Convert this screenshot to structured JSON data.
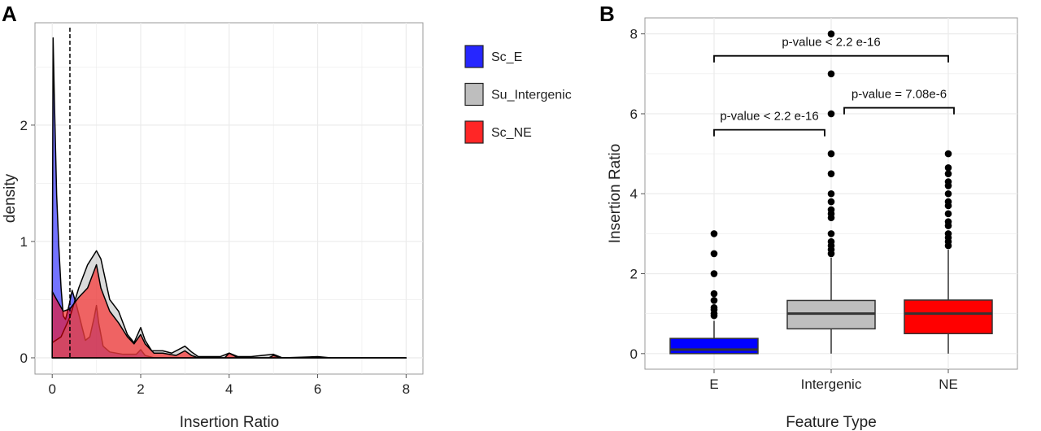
{
  "chart_data": [
    {
      "panel": "A",
      "type": "area",
      "xlabel": "Insertion Ratio",
      "ylabel": "density",
      "xlim": [
        -0.39,
        8.38
      ],
      "ylim": [
        -0.14,
        2.88
      ],
      "xticks": [
        0,
        2,
        4,
        6,
        8
      ],
      "yticks": [
        0,
        1,
        2
      ],
      "grid": true,
      "legend_position": "right",
      "vline_x": 0.4,
      "series": [
        {
          "name": "Sc_E",
          "color": "#0000ff",
          "x": [
            0,
            0.02,
            0.05,
            0.1,
            0.15,
            0.2,
            0.25,
            0.3,
            0.38,
            0.45,
            0.55,
            0.65,
            0.75,
            0.85,
            0.95,
            1.0,
            1.05,
            1.15,
            1.3,
            1.6,
            1.9,
            2.0,
            2.1,
            2.3,
            8
          ],
          "y": [
            0.4,
            2.75,
            2.2,
            1.4,
            0.95,
            0.6,
            0.36,
            0.33,
            0.45,
            0.58,
            0.45,
            0.3,
            0.15,
            0.18,
            0.35,
            0.45,
            0.3,
            0.1,
            0.05,
            0.03,
            0.03,
            0.07,
            0.02,
            0,
            0
          ]
        },
        {
          "name": "Su_Intergenic",
          "color": "#bebebe",
          "x": [
            0,
            0.2,
            0.4,
            0.6,
            0.8,
            1.0,
            1.1,
            1.3,
            1.5,
            1.7,
            1.85,
            2.0,
            2.1,
            2.25,
            2.5,
            2.7,
            2.9,
            3.0,
            3.15,
            3.3,
            3.8,
            4.0,
            4.2,
            4.5,
            5.0,
            5.2,
            6.0,
            6.3,
            8
          ],
          "y": [
            0.13,
            0.18,
            0.35,
            0.6,
            0.8,
            0.92,
            0.85,
            0.5,
            0.4,
            0.2,
            0.13,
            0.26,
            0.15,
            0.06,
            0.06,
            0.04,
            0.08,
            0.1,
            0.05,
            0.01,
            0.01,
            0.04,
            0.01,
            0.01,
            0.03,
            0,
            0.01,
            0,
            0
          ]
        },
        {
          "name": "Sc_NE",
          "color": "#ff0000",
          "x": [
            0,
            0.1,
            0.25,
            0.4,
            0.6,
            0.8,
            1.0,
            1.1,
            1.3,
            1.5,
            1.7,
            1.85,
            2.0,
            2.1,
            2.3,
            2.5,
            2.8,
            3.0,
            3.15,
            3.3,
            3.9,
            4.0,
            4.2,
            4.9,
            5.0,
            5.2,
            8
          ],
          "y": [
            0.57,
            0.5,
            0.4,
            0.42,
            0.52,
            0.6,
            0.8,
            0.6,
            0.4,
            0.3,
            0.18,
            0.12,
            0.2,
            0.12,
            0.04,
            0.04,
            0.02,
            0.06,
            0.02,
            0,
            0,
            0.04,
            0,
            0,
            0.02,
            0,
            0
          ]
        }
      ]
    },
    {
      "panel": "B",
      "type": "box",
      "xlabel": "Feature Type",
      "ylabel": "Insertion Ratio",
      "ylim": [
        -0.39,
        8.4
      ],
      "yticks": [
        0,
        2,
        4,
        6,
        8
      ],
      "grid": true,
      "categories": [
        "E",
        "Intergenic",
        "NE"
      ],
      "boxes": [
        {
          "name": "E",
          "color": "#0000ff",
          "min": 0,
          "q1": 0,
          "median": 0.1,
          "q3": 0.38,
          "max": 0.82,
          "outliers": [
            0.95,
            1.0,
            1.1,
            1.15,
            1.33,
            1.5,
            2.0,
            2.5,
            3.0
          ]
        },
        {
          "name": "Intergenic",
          "color": "#bebebe",
          "min": 0,
          "q1": 0.62,
          "median": 1.0,
          "q3": 1.33,
          "max": 2.4,
          "outliers": [
            2.5,
            2.6,
            2.7,
            2.8,
            3.0,
            3.4,
            3.5,
            3.6,
            3.8,
            4.0,
            4.5,
            5.0,
            6.0,
            7.0,
            8.0
          ]
        },
        {
          "name": "NE",
          "color": "#ff0000",
          "min": 0,
          "q1": 0.5,
          "median": 1.0,
          "q3": 1.34,
          "max": 2.6,
          "outliers": [
            2.7,
            2.8,
            2.9,
            3.0,
            3.2,
            3.3,
            3.5,
            3.7,
            3.8,
            4.0,
            4.2,
            4.3,
            4.5,
            4.65,
            5.0
          ]
        }
      ],
      "annotations": [
        {
          "text": "p-value < 2.2 e-16",
          "from": "E",
          "to": "NE",
          "y": 7.45
        },
        {
          "text": "p-value < 2.2 e-16",
          "from": "E",
          "to": "Intergenic",
          "y": 5.6
        },
        {
          "text": "p-value = 7.08e-6",
          "from": "Intergenic",
          "to": "NE",
          "y": 6.15
        }
      ]
    }
  ],
  "panel_labels": [
    "A",
    "B"
  ]
}
